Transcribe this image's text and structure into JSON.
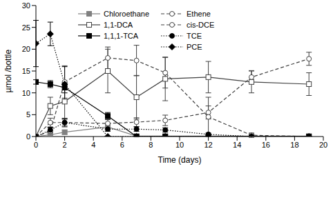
{
  "chart_data": {
    "type": "line",
    "x_label": "Time (days)",
    "y_label": "µmol /bottle",
    "x": [
      0,
      1,
      2,
      5,
      7,
      9,
      12,
      15,
      19
    ],
    "xlim": [
      0,
      20
    ],
    "xticks": [
      0,
      2,
      4,
      6,
      8,
      10,
      12,
      14,
      16,
      18,
      20
    ],
    "ylim": [
      0,
      30
    ],
    "yticks": [
      0,
      5,
      10,
      15,
      20,
      25,
      30
    ],
    "grid": false,
    "legend": "top",
    "series": [
      {
        "name": "Chloroethane",
        "color": "#808080",
        "marker": "square",
        "line_style": "solid",
        "values": [
          0,
          0.4,
          1.0,
          2.2,
          0.1,
          0.1,
          0.1,
          0.1,
          0.1
        ],
        "errors": [
          0,
          0.3,
          0.5,
          0.8,
          0.2,
          0,
          0,
          0,
          0
        ]
      },
      {
        "name": "1,1-DCA",
        "color": "#404040",
        "marker": "open_square",
        "line_style": "solid",
        "values": [
          0,
          7,
          8,
          15,
          9,
          13.2,
          13.6,
          12.5,
          12
        ],
        "errors": [
          0,
          2,
          4,
          5,
          5,
          5,
          3.6,
          2.5,
          2.6
        ]
      },
      {
        "name": "1,1,1-TCA",
        "color": "#000000",
        "marker": "square",
        "line_style": "solid",
        "values": [
          12.5,
          12,
          11.2,
          4.7,
          0,
          0,
          0,
          0,
          0
        ],
        "errors": [
          0.5,
          0.8,
          1.2,
          0.8,
          0,
          0,
          0,
          0,
          0
        ]
      },
      {
        "name": "Ethene",
        "color": "#404040",
        "marker": "open_circle",
        "line_style": "dashed",
        "values": [
          0,
          3.2,
          3.2,
          3,
          3.3,
          3.7,
          5.5,
          13.6,
          17.8
        ],
        "errors": [
          0,
          1,
          1,
          1,
          1,
          1.2,
          1.5,
          1.5,
          1.5
        ]
      },
      {
        "name": "cis-DCE",
        "color": "#404040",
        "marker": "open_circle",
        "line_style": "dashed",
        "values": [
          0,
          1.2,
          12.5,
          18,
          17.4,
          14.6,
          4.5,
          0.3,
          0
        ],
        "errors": [
          0,
          0.8,
          3.7,
          2.5,
          3.5,
          3.5,
          4.5,
          0.5,
          0
        ]
      },
      {
        "name": "TCE",
        "color": "#000000",
        "marker": "circle",
        "line_style": "dotted",
        "values": [
          0,
          1.5,
          3.2,
          1.7,
          1.7,
          1.5,
          0.5,
          0,
          0
        ],
        "errors": [
          0,
          0.6,
          0.8,
          0.5,
          0.5,
          0.5,
          0.3,
          0,
          0
        ]
      },
      {
        "name": "PCE",
        "color": "#000000",
        "marker": "diamond",
        "line_style": "dotted",
        "values": [
          21.3,
          23.5,
          12,
          0,
          0,
          0,
          0,
          0,
          0
        ],
        "errors": [
          5.3,
          2.7,
          4,
          0,
          0,
          0,
          0,
          0,
          0
        ]
      }
    ]
  }
}
